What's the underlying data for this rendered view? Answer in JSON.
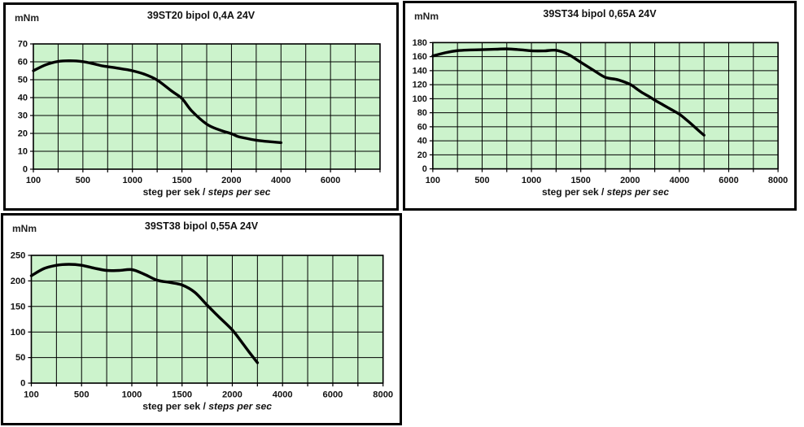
{
  "colors": {
    "plot_bg": "#ccf3cc",
    "grid": "#000000",
    "curve": "#000000",
    "panel_border": "#000000",
    "text": "#111111"
  },
  "chart_data": [
    {
      "type": "line",
      "title": "39ST20 bipol 0,4A 24V",
      "unit_label": "mNm",
      "xlabel": "steg per sek / steps per sec",
      "xlabel_normal": "steg per sek /",
      "xlabel_italic": "steps per sec",
      "ylim": [
        0,
        70
      ],
      "y_step": 10,
      "grid": true,
      "legend": false,
      "x_axis_gridline_values": [
        100,
        300,
        500,
        750,
        1000,
        1250,
        1500,
        1750,
        2000,
        3000,
        4000,
        5000,
        6000,
        7000,
        8000
      ],
      "x_ticks": [
        {
          "value": 100,
          "label": "100"
        },
        {
          "value": 500,
          "label": "500"
        },
        {
          "value": 1000,
          "label": "1000"
        },
        {
          "value": 1500,
          "label": "1500"
        },
        {
          "value": 2000,
          "label": "2000"
        },
        {
          "value": 4000,
          "label": "4000"
        },
        {
          "value": 6000,
          "label": "6000"
        }
      ],
      "series": [
        {
          "x": [
            100,
            200,
            300,
            400,
            500,
            600,
            700,
            800,
            900,
            1000,
            1125,
            1250,
            1400,
            1500,
            1600,
            1750,
            1875,
            2000,
            2250,
            2500,
            3000,
            3500,
            4000
          ],
          "y": [
            55,
            58.3,
            60.2,
            60.6,
            60.1,
            59,
            57.7,
            56.9,
            56,
            55,
            53,
            49.8,
            43.5,
            39.5,
            32.5,
            25.2,
            22,
            19.8,
            18.3,
            17.5,
            16.2,
            15.4,
            14.8
          ]
        }
      ]
    },
    {
      "type": "line",
      "title": "39ST34 bipol 0,65A 24V",
      "unit_label": "mNm",
      "xlabel": "steg per sek / steps per sec",
      "xlabel_normal": "steg per sek /",
      "xlabel_italic": "steps per sec",
      "ylim": [
        0,
        180
      ],
      "y_step": 20,
      "grid": true,
      "legend": false,
      "x_axis_gridline_values": [
        100,
        300,
        500,
        750,
        1000,
        1250,
        1500,
        1750,
        2000,
        3000,
        4000,
        5000,
        6000,
        7000,
        8000
      ],
      "x_ticks": [
        {
          "value": 100,
          "label": "100"
        },
        {
          "value": 500,
          "label": "500"
        },
        {
          "value": 1000,
          "label": "1000"
        },
        {
          "value": 1500,
          "label": "1500"
        },
        {
          "value": 2000,
          "label": "2000"
        },
        {
          "value": 4000,
          "label": "4000"
        },
        {
          "value": 6000,
          "label": "6000"
        },
        {
          "value": 8000,
          "label": "8000"
        }
      ],
      "series": [
        {
          "x": [
            100,
            200,
            300,
            400,
            500,
            625,
            750,
            875,
            1000,
            1125,
            1250,
            1375,
            1500,
            1625,
            1750,
            1875,
            2000,
            2250,
            2500,
            2750,
            3000,
            3250,
            3500,
            3750,
            4000,
            4250,
            4500,
            4750,
            5000
          ],
          "y": [
            161,
            165.5,
            168.5,
            169.5,
            170,
            170.5,
            171,
            170,
            168.3,
            168.2,
            169,
            163,
            152,
            141,
            130.5,
            127,
            120.5,
            114.5,
            108.5,
            103.5,
            98,
            93,
            88,
            83,
            78,
            71,
            63.5,
            55.5,
            48
          ]
        }
      ]
    },
    {
      "type": "line",
      "title": "39ST38 bipol 0,55A 24V",
      "unit_label": "mNm",
      "xlabel": "steg per sek / steps per sec",
      "xlabel_normal": "steg per sek /",
      "xlabel_italic": "steps per sec",
      "ylim": [
        0,
        250
      ],
      "y_step": 50,
      "grid": true,
      "legend": false,
      "x_axis_gridline_values": [
        100,
        300,
        500,
        750,
        1000,
        1250,
        1500,
        1750,
        2000,
        3000,
        4000,
        5000,
        6000,
        7000,
        8000
      ],
      "x_ticks": [
        {
          "value": 100,
          "label": "100"
        },
        {
          "value": 500,
          "label": "500"
        },
        {
          "value": 1000,
          "label": "1000"
        },
        {
          "value": 1500,
          "label": "1500"
        },
        {
          "value": 2000,
          "label": "2000"
        },
        {
          "value": 4000,
          "label": "4000"
        },
        {
          "value": 6000,
          "label": "6000"
        },
        {
          "value": 8000,
          "label": "8000"
        }
      ],
      "series": [
        {
          "x": [
            100,
            200,
            300,
            400,
            500,
            625,
            750,
            875,
            1000,
            1125,
            1250,
            1375,
            1500,
            1625,
            1750,
            1875,
            2000,
            2333,
            2667,
            3000
          ],
          "y": [
            210,
            224,
            230.5,
            232.5,
            230.5,
            225,
            220.5,
            220.5,
            222,
            213,
            201.5,
            197,
            192,
            178,
            152.5,
            128,
            104,
            83,
            61,
            40
          ]
        }
      ]
    }
  ]
}
